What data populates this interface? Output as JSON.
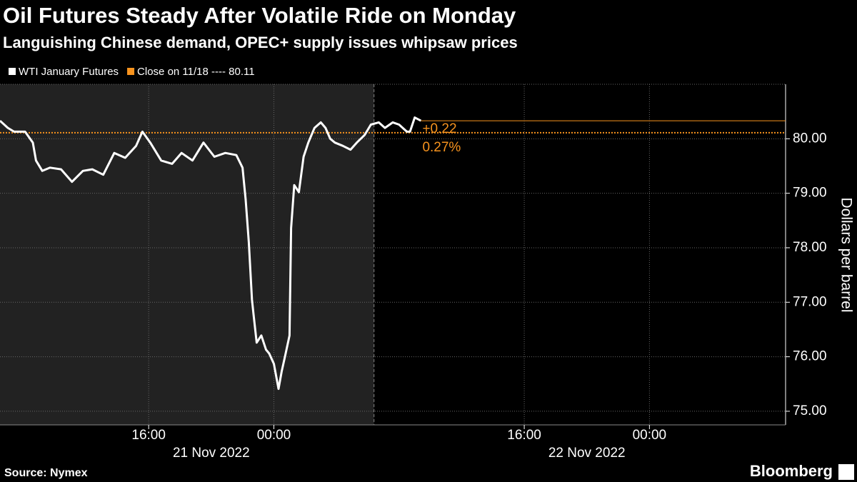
{
  "chart_data": {
    "type": "line",
    "title": "Oil Futures Steady After Volatile Ride on Monday",
    "subtitle": "Languishing Chinese demand, OPEC+ supply issues whipsaw prices",
    "y_axis_label": "Dollars per barrel",
    "source": "Source: Nymex",
    "brand": "Bloomberg",
    "date_labels": [
      "21 Nov 2022",
      "22 Nov 2022"
    ],
    "xlim": [
      6.5,
      56.7
    ],
    "xticks": [
      {
        "value": 16,
        "label": "16:00"
      },
      {
        "value": 24,
        "label": "00:00"
      },
      {
        "value": 40,
        "label": "16:00"
      },
      {
        "value": 48,
        "label": "00:00"
      }
    ],
    "ylim": [
      74.75,
      81.0
    ],
    "yticks": [
      {
        "value": 75,
        "label": "75.00"
      },
      {
        "value": 76,
        "label": "76.00"
      },
      {
        "value": 77,
        "label": "77.00"
      },
      {
        "value": 78,
        "label": "78.00"
      },
      {
        "value": 79,
        "label": "79.00"
      },
      {
        "value": 80,
        "label": "80.00"
      }
    ],
    "grid": true,
    "shade_until": 30.4,
    "series": [
      {
        "name": "WTI January Futures",
        "color": "#ffffff",
        "x": [
          6.5,
          7.0,
          7.4,
          8.1,
          8.6,
          8.8,
          9.2,
          9.7,
          10.4,
          11.1,
          11.8,
          12.4,
          13.1,
          13.8,
          14.5,
          15.2,
          15.6,
          16.1,
          16.8,
          17.5,
          18.1,
          18.8,
          19.5,
          20.2,
          20.9,
          21.6,
          22.0,
          22.2,
          22.4,
          22.6,
          22.7,
          22.9,
          23.2,
          23.5,
          23.7,
          24.0,
          24.3,
          24.5,
          24.7,
          25.0,
          25.1,
          25.3,
          25.6,
          25.9,
          26.2,
          26.6,
          27.0,
          27.3,
          27.6,
          27.9,
          28.4,
          28.9,
          29.3,
          29.8,
          30.2,
          30.7,
          31.1,
          31.6,
          32.0,
          32.5,
          32.7,
          33.0,
          33.4
        ],
        "values": [
          80.33,
          80.2,
          80.13,
          80.13,
          79.93,
          79.6,
          79.41,
          79.47,
          79.44,
          79.21,
          79.41,
          79.44,
          79.34,
          79.74,
          79.65,
          79.87,
          80.13,
          79.93,
          79.6,
          79.54,
          79.74,
          79.6,
          79.93,
          79.67,
          79.74,
          79.7,
          79.47,
          78.88,
          78.1,
          77.05,
          76.78,
          76.26,
          76.39,
          76.13,
          76.06,
          75.87,
          75.41,
          75.73,
          75.99,
          76.39,
          78.36,
          79.15,
          79.02,
          79.67,
          79.93,
          80.2,
          80.3,
          80.2,
          80.0,
          79.93,
          79.87,
          79.8,
          79.93,
          80.07,
          80.26,
          80.3,
          80.2,
          80.3,
          80.26,
          80.13,
          80.13,
          80.39,
          80.33
        ]
      }
    ],
    "reference_line": {
      "label": "Close on 11/18 ---- 80.11",
      "value": 80.11,
      "color": "#f7931e"
    },
    "annotations": [
      "+0.22",
      "0.27%"
    ]
  }
}
